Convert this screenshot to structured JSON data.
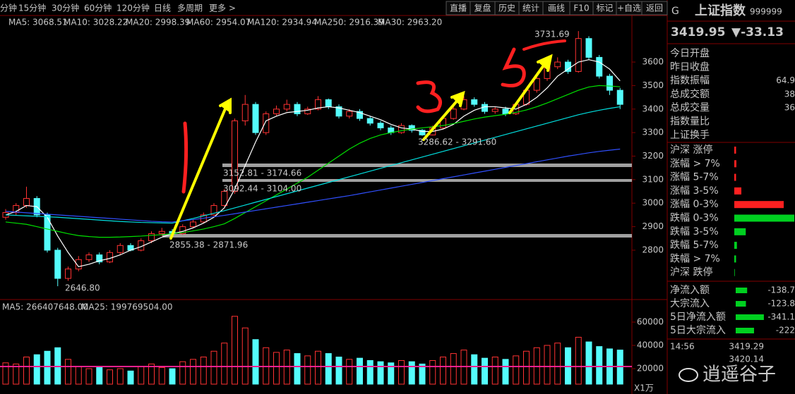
{
  "toolbar": {
    "periods": [
      "分钟",
      "15分钟",
      "30分钟",
      "60分钟",
      "120分钟",
      "日线",
      "多周期",
      "更多 >"
    ],
    "buttons": [
      "直播",
      "复盘",
      "历史",
      "统计",
      "画线",
      "F10",
      "标记",
      "+自选",
      "返回"
    ]
  },
  "chart_data": [
    {
      "type": "candlestick",
      "ylim": [
        2635,
        3750
      ],
      "yticks": [
        2800,
        2900,
        3000,
        3100,
        3200,
        3300,
        3400,
        3500,
        3600
      ],
      "up_color": "#ff3232",
      "down_color": "#54fcfc",
      "open": [
        2940,
        2960,
        2990,
        3020,
        2950,
        2800,
        2680,
        2720,
        2760,
        2780,
        2750,
        2790,
        2820,
        2800,
        2840,
        2870,
        2880,
        2870,
        2900,
        2920,
        2950,
        2990,
        3050,
        3350,
        3420,
        3300,
        3380,
        3400,
        3420,
        3380,
        3400,
        3440,
        3410,
        3370,
        3390,
        3360,
        3340,
        3320,
        3300,
        3330,
        3310,
        3290,
        3320,
        3360,
        3400,
        3440,
        3420,
        3390,
        3400,
        3380,
        3420,
        3480,
        3530,
        3580,
        3600,
        3560,
        3700,
        3620,
        3540,
        3480
      ],
      "high": [
        2975,
        3000,
        3070,
        3030,
        2960,
        2810,
        2730,
        2775,
        2790,
        2790,
        2800,
        2830,
        2830,
        2850,
        2880,
        2895,
        2890,
        2910,
        2930,
        2960,
        3000,
        3060,
        3360,
        3460,
        3430,
        3390,
        3415,
        3440,
        3430,
        3410,
        3455,
        3445,
        3420,
        3400,
        3400,
        3370,
        3350,
        3330,
        3340,
        3335,
        3315,
        3330,
        3370,
        3410,
        3455,
        3450,
        3430,
        3410,
        3410,
        3425,
        3490,
        3540,
        3590,
        3620,
        3610,
        3731.69,
        3710,
        3630,
        3550,
        3490
      ],
      "low": [
        2930,
        2950,
        2980,
        2940,
        2790,
        2646.8,
        2670,
        2710,
        2750,
        2740,
        2745,
        2780,
        2795,
        2795,
        2830,
        2860,
        2855.38,
        2865,
        2895,
        2915,
        2945,
        2985,
        3040,
        3330,
        3290,
        3290,
        3370,
        3390,
        3370,
        3375,
        3395,
        3400,
        3360,
        3360,
        3350,
        3330,
        3310,
        3290,
        3295,
        3300,
        3286.62,
        3288,
        3315,
        3355,
        3395,
        3410,
        3380,
        3380,
        3370,
        3375,
        3415,
        3470,
        3520,
        3570,
        3550,
        3555,
        3610,
        3530,
        3460,
        3400
      ],
      "close": [
        2960,
        2990,
        3020,
        2950,
        2800,
        2680,
        2720,
        2760,
        2780,
        2750,
        2790,
        2820,
        2800,
        2840,
        2870,
        2880,
        2870,
        2900,
        2920,
        2950,
        2990,
        3050,
        3350,
        3420,
        3300,
        3380,
        3400,
        3420,
        3380,
        3400,
        3440,
        3410,
        3370,
        3390,
        3360,
        3340,
        3320,
        3300,
        3330,
        3310,
        3290,
        3320,
        3360,
        3400,
        3440,
        3420,
        3390,
        3400,
        3380,
        3420,
        3480,
        3530,
        3580,
        3600,
        3560,
        3700,
        3620,
        3540,
        3480,
        3420
      ],
      "series": [
        {
          "legend": "MA5: 3068.51",
          "color": "#ffffff",
          "values": [
            2950,
            2965,
            2990,
            2985,
            2940,
            2860,
            2790,
            2730,
            2740,
            2755,
            2765,
            2780,
            2800,
            2815,
            2835,
            2855,
            2870,
            2880,
            2895,
            2915,
            2940,
            2980,
            3060,
            3160,
            3260,
            3350,
            3370,
            3385,
            3390,
            3395,
            3405,
            3410,
            3405,
            3395,
            3385,
            3370,
            3355,
            3335,
            3320,
            3315,
            3305,
            3305,
            3315,
            3335,
            3370,
            3395,
            3410,
            3410,
            3405,
            3400,
            3420,
            3450,
            3490,
            3540,
            3570,
            3600,
            3610,
            3600,
            3570,
            3520
          ]
        },
        {
          "legend": "MA10: 3028.22",
          "color": "#ffff00"
        },
        {
          "legend": "MA20: 2998.39",
          "color": "#ff00ff"
        },
        {
          "legend": "MA60: 2954.07",
          "color": "#00e000",
          "values": [
            2920,
            2915,
            2910,
            2900,
            2890,
            2880,
            2870,
            2862,
            2858,
            2855,
            2855,
            2856,
            2858,
            2860,
            2863,
            2866,
            2870,
            2875,
            2882,
            2890,
            2900,
            2912,
            2935,
            2960,
            2985,
            3010,
            3035,
            3060,
            3085,
            3110,
            3140,
            3170,
            3200,
            3230,
            3255,
            3275,
            3290,
            3300,
            3308,
            3315,
            3320,
            3325,
            3330,
            3338,
            3348,
            3358,
            3366,
            3372,
            3378,
            3386,
            3396,
            3410,
            3426,
            3444,
            3462,
            3480,
            3494,
            3500,
            3498,
            3495
          ]
        },
        {
          "legend": "MA120: 2934.94",
          "color": "#00e0e0",
          "values": [
            2950,
            2948,
            2946,
            2944,
            2942,
            2940,
            2937,
            2934,
            2931,
            2928,
            2925,
            2922,
            2920,
            2918,
            2917,
            2916,
            2915,
            2925,
            2935,
            2946,
            2957,
            2968,
            2980,
            2992,
            3004,
            3016,
            3028,
            3040,
            3052,
            3064,
            3076,
            3088,
            3100,
            3112,
            3124,
            3136,
            3148,
            3160,
            3172,
            3184,
            3196,
            3208,
            3220,
            3232,
            3244,
            3256,
            3268,
            3280,
            3292,
            3304,
            3316,
            3328,
            3340,
            3352,
            3364,
            3376,
            3386,
            3395,
            3403,
            3410
          ]
        },
        {
          "legend": "MA250: 2916.39",
          "color": "#3050ff",
          "values": [
            2965,
            2962,
            2959,
            2956,
            2953,
            2950,
            2947,
            2944,
            2941,
            2938,
            2935,
            2932,
            2929,
            2926,
            2923,
            2921,
            2920,
            2925,
            2930,
            2936,
            2942,
            2948,
            2955,
            2962,
            2969,
            2976,
            2983,
            2990,
            2997,
            3004,
            3011,
            3018,
            3025,
            3032,
            3040,
            3048,
            3056,
            3064,
            3072,
            3080,
            3088,
            3096,
            3104,
            3112,
            3120,
            3128,
            3136,
            3144,
            3152,
            3160,
            3168,
            3176,
            3184,
            3192,
            3200,
            3207,
            3214,
            3220,
            3225,
            3230
          ]
        },
        {
          "legend": "MA30: 2963.20",
          "color": "#c8c8c8"
        }
      ],
      "annotations": [
        "3731.69",
        "3286.62 - 3291.60",
        "3152.81 - 3174.66",
        "3092.44 - 3104.00",
        "2855.38 - 2871.96",
        "2646.80"
      ]
    },
    {
      "type": "bar",
      "ylim": [
        6700,
        70300
      ],
      "yticks": [
        20000,
        40000,
        60000
      ],
      "unit": "X1万",
      "legend": [
        "MA5: 266407648.00",
        "MA25: 199769504.00"
      ],
      "values": [
        25000,
        24000,
        30000,
        32000,
        35000,
        38000,
        28000,
        22000,
        20000,
        21000,
        19000,
        20000,
        18000,
        22000,
        24000,
        21000,
        20000,
        26000,
        28000,
        30000,
        35000,
        42000,
        65000,
        55000,
        45000,
        38000,
        34000,
        36000,
        33000,
        31000,
        35000,
        33000,
        30000,
        28000,
        29000,
        27000,
        26000,
        25000,
        27000,
        26000,
        24000,
        27000,
        30000,
        33000,
        36000,
        32000,
        29000,
        30000,
        28000,
        31000,
        35000,
        38000,
        40000,
        42000,
        38000,
        47000,
        43000,
        39000,
        37000,
        36000
      ]
    }
  ],
  "sidebar": {
    "flag": "G",
    "name": "上证指数",
    "code": "999999",
    "price": "3419.95",
    "change": "▼-33.13",
    "info": [
      {
        "label": "今日开盘"
      },
      {
        "label": "昨日收盘"
      },
      {
        "label": "指数振幅",
        "value": "64.9"
      },
      {
        "label": "总成交额",
        "value": "38"
      },
      {
        "label": "总成交量",
        "value": "36"
      },
      {
        "label": "指数量比"
      },
      {
        "label": "上证换手"
      }
    ],
    "breadth": [
      {
        "label": "沪深 涨停",
        "value": 10
      },
      {
        "label": "涨幅 > 7%",
        "value": 12
      },
      {
        "label": "涨幅 5-7%",
        "value": 10
      },
      {
        "label": "涨幅 3-5%",
        "value": 40
      },
      {
        "label": "涨幅 0-3%",
        "value": 280
      },
      {
        "label": "跌幅 0-3%",
        "value": 340
      },
      {
        "label": "跌幅 3-5%",
        "value": 65
      },
      {
        "label": "跌幅 5-7%",
        "value": 15
      },
      {
        "label": "跌幅 > 7%",
        "value": 10
      },
      {
        "label": "沪深 跌停",
        "value": 3
      }
    ],
    "flow": [
      {
        "label": "净流入额",
        "value": -138.7
      },
      {
        "label": "大宗流入",
        "value": -123.8
      },
      {
        "label": "5日净流入额",
        "value": -341.1
      },
      {
        "label": "5日大宗流入",
        "value": -222.0
      }
    ],
    "time": "14:56",
    "ticks": [
      3419.29,
      3420.14
    ]
  },
  "watermark": "逍遥谷子"
}
